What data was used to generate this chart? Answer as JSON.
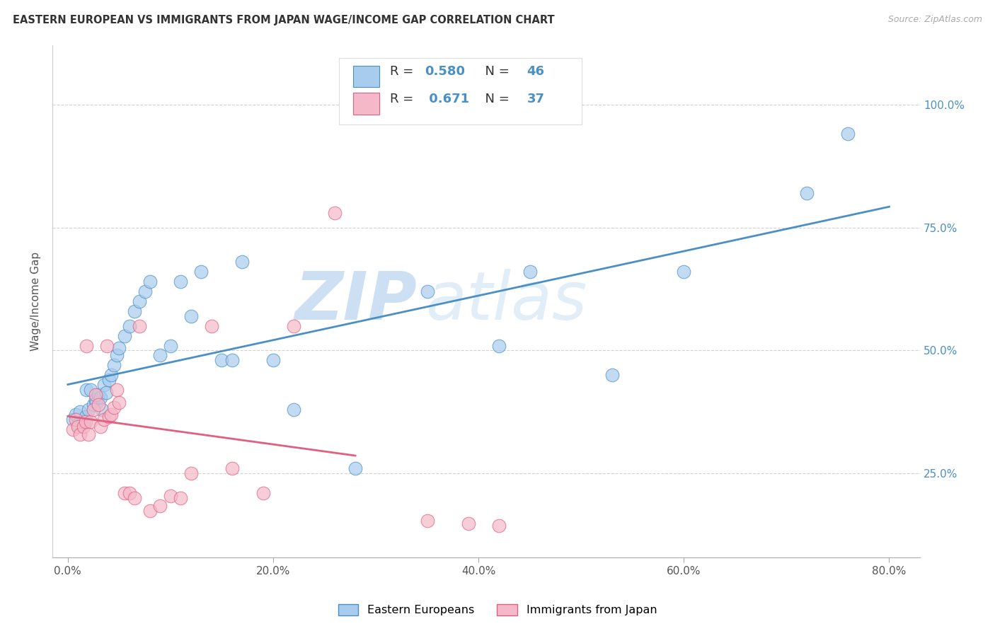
{
  "title": "EASTERN EUROPEAN VS IMMIGRANTS FROM JAPAN WAGE/INCOME GAP CORRELATION CHART",
  "source": "Source: ZipAtlas.com",
  "ylabel_label": "Wage/Income Gap",
  "legend_label1": "Eastern Europeans",
  "legend_label2": "Immigrants from Japan",
  "r1": 0.58,
  "n1": 46,
  "r2": 0.671,
  "n2": 37,
  "color_blue": "#a8ccee",
  "color_pink": "#f5b8c8",
  "color_blue_line": "#4a90c4",
  "color_pink_line": "#e06080",
  "watermark_zip": "ZIP",
  "watermark_atlas": "atlas",
  "xticks": [
    0.0,
    0.2,
    0.4,
    0.6,
    0.8
  ],
  "xtick_labels": [
    "0.0%",
    "20.0%",
    "40.0%",
    "60.0%",
    "80.0%"
  ],
  "yticks": [
    0.25,
    0.5,
    0.75,
    1.0
  ],
  "ytick_labels": [
    "25.0%",
    "50.0%",
    "75.0%",
    "100.0%"
  ],
  "xlim": [
    -0.015,
    0.83
  ],
  "ylim": [
    0.08,
    1.12
  ],
  "blue_x": [
    0.005,
    0.008,
    0.01,
    0.012,
    0.015,
    0.017,
    0.018,
    0.02,
    0.022,
    0.025,
    0.027,
    0.028,
    0.03,
    0.032,
    0.033,
    0.035,
    0.037,
    0.04,
    0.042,
    0.045,
    0.048,
    0.05,
    0.055,
    0.06,
    0.065,
    0.07,
    0.075,
    0.08,
    0.09,
    0.1,
    0.11,
    0.12,
    0.13,
    0.15,
    0.16,
    0.17,
    0.2,
    0.22,
    0.28,
    0.35,
    0.42,
    0.45,
    0.53,
    0.6,
    0.72,
    0.76
  ],
  "blue_y": [
    0.36,
    0.37,
    0.35,
    0.375,
    0.355,
    0.365,
    0.42,
    0.38,
    0.42,
    0.39,
    0.4,
    0.395,
    0.41,
    0.405,
    0.38,
    0.43,
    0.415,
    0.44,
    0.45,
    0.47,
    0.49,
    0.505,
    0.53,
    0.55,
    0.58,
    0.6,
    0.62,
    0.64,
    0.49,
    0.51,
    0.64,
    0.57,
    0.66,
    0.48,
    0.48,
    0.68,
    0.48,
    0.38,
    0.26,
    0.62,
    0.51,
    0.66,
    0.45,
    0.66,
    0.82,
    0.94
  ],
  "pink_x": [
    0.005,
    0.008,
    0.01,
    0.012,
    0.015,
    0.017,
    0.018,
    0.02,
    0.022,
    0.025,
    0.027,
    0.03,
    0.032,
    0.035,
    0.038,
    0.04,
    0.042,
    0.045,
    0.048,
    0.05,
    0.055,
    0.06,
    0.065,
    0.07,
    0.08,
    0.09,
    0.1,
    0.11,
    0.12,
    0.14,
    0.16,
    0.19,
    0.22,
    0.26,
    0.35,
    0.39,
    0.42
  ],
  "pink_y": [
    0.34,
    0.36,
    0.345,
    0.33,
    0.345,
    0.355,
    0.51,
    0.33,
    0.355,
    0.38,
    0.41,
    0.39,
    0.345,
    0.36,
    0.51,
    0.365,
    0.37,
    0.385,
    0.42,
    0.395,
    0.21,
    0.21,
    0.2,
    0.55,
    0.175,
    0.185,
    0.205,
    0.2,
    0.25,
    0.55,
    0.26,
    0.21,
    0.55,
    0.78,
    0.155,
    0.148,
    0.145
  ],
  "figsize": [
    14.06,
    8.92
  ],
  "dpi": 100
}
